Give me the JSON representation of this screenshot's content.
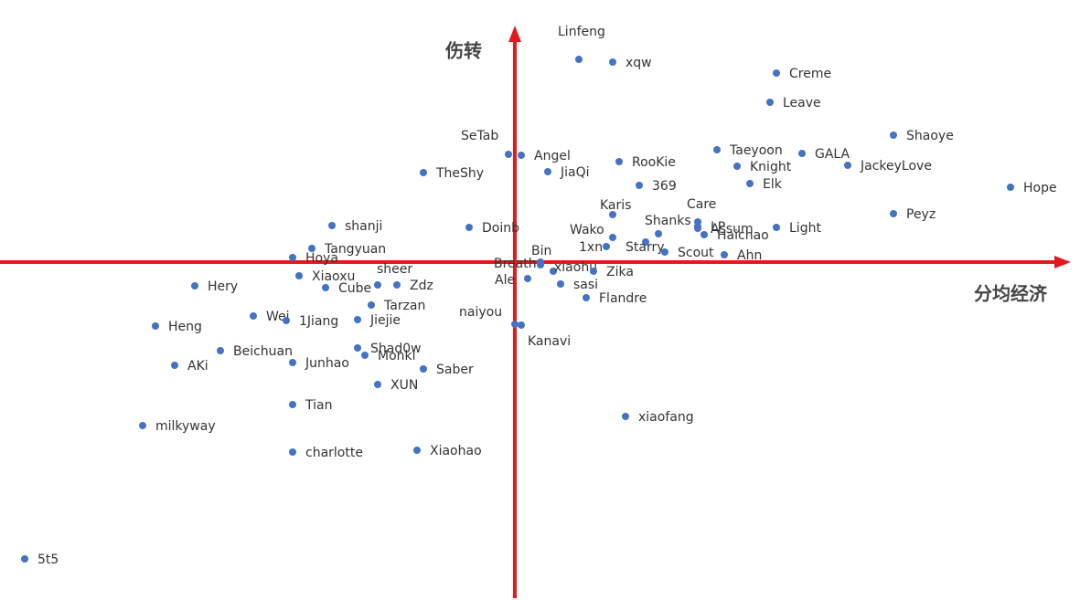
{
  "chart_data": {
    "type": "scatter",
    "x_label": "分均经济",
    "y_label": "伤转",
    "color": "#4472c4",
    "axis_color": "#e31a1c",
    "xlim": [
      -563,
      618
    ],
    "ylim": [
      -370,
      287
    ],
    "labels": [
      "Linfeng",
      "xqw",
      "Creme",
      "Leave",
      "Shaoye",
      "Taeyoon",
      "GALA",
      "JackeyLove",
      "Knight",
      "Elk",
      "Hope",
      "SeTab",
      "Angel",
      "TheShy",
      "JiaQi",
      "RooKie",
      "369",
      "Karis",
      "Care",
      "LP",
      "Peyz",
      "shanji",
      "Doinb",
      "Wako",
      "Shanks",
      "Assum",
      "Haichao",
      "Light",
      "Tangyuan",
      "Hoya",
      "1xn",
      "Starry",
      "Scout",
      "Ahn",
      "Bin",
      "Breath",
      "xiaohu",
      "Zika",
      "Ale",
      "sasi",
      "Flandre",
      "Xiaoxu",
      "sheer",
      "Zdz",
      "Cube",
      "Hery",
      "Tarzan",
      "naiyou",
      "Kanavi",
      "Wei",
      "1Jiang",
      "Jiejie",
      "Heng",
      "Shad0w",
      "Monki",
      "Beichuan",
      "AKi",
      "Junhao",
      "Saber",
      "XUN",
      "Tian",
      "xiaofang",
      "milkyway",
      "charlotte",
      "Xiaohao",
      "5t5"
    ],
    "x": [
      70,
      107,
      286,
      279,
      414,
      221,
      314,
      364,
      243,
      257,
      542,
      -7,
      7,
      -100,
      36,
      114,
      136,
      107,
      200,
      200,
      414,
      -200,
      -50,
      107,
      157,
      200,
      207,
      286,
      -222,
      -243,
      100,
      143,
      164,
      229,
      28,
      28,
      42,
      86,
      14,
      50,
      78,
      -236,
      -150,
      -129,
      -207,
      -350,
      -157,
      0,
      7,
      -286,
      -250,
      -172,
      -393,
      -172,
      -164,
      -322,
      -372,
      -243,
      -100,
      -150,
      -243,
      121,
      -407,
      -243,
      -107,
      -536
    ],
    "values": [
      222,
      219,
      207,
      175,
      139,
      123,
      119,
      106,
      105,
      86,
      82,
      118,
      117,
      98,
      99,
      110,
      84,
      52,
      44,
      39,
      53,
      40,
      38,
      27,
      31,
      37,
      30,
      38,
      15,
      5,
      17,
      22,
      11,
      8,
      0,
      -3,
      -10,
      -10,
      -18,
      -24,
      -39,
      -15,
      -25,
      -25,
      -28,
      -26,
      -47,
      -68,
      -69,
      -59,
      -64,
      -63,
      -70,
      -94,
      -102,
      -97,
      -113,
      -110,
      -117,
      -134,
      -156,
      -169,
      -179,
      -208,
      -206,
      -325
    ]
  }
}
